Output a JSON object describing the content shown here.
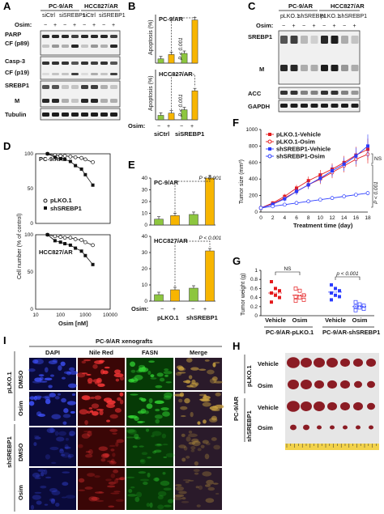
{
  "panels": {
    "A": {
      "label": "A",
      "cell_lines": [
        "PC-9/AR",
        "HCC827/AR"
      ],
      "groups": [
        "siCtrl",
        "siSREBP1",
        "siCtrl",
        "siSREBP1"
      ],
      "osim_label": "Osim:",
      "osim_signs": [
        "−",
        "+",
        "−",
        "+",
        "−",
        "+",
        "−",
        "+"
      ],
      "rows": [
        "PARP",
        "CF (p89)",
        "Casp-3",
        "CF (p19)",
        "SREBP1",
        "M",
        "Tubulin"
      ]
    },
    "B": {
      "label": "B",
      "osim_label": "Osim:",
      "osim_signs": [
        "−",
        "+",
        "−",
        "+"
      ],
      "groups": [
        "siCtrl",
        "siSREBP1"
      ]
    },
    "C": {
      "label": "C",
      "cell_lines": [
        "PC-9/AR",
        "HCC827/AR"
      ],
      "groups": [
        "pLKO.1",
        "shSREBP1",
        "pLKO.1",
        "shSREBP1"
      ],
      "osim_label": "Osim:",
      "osim_signs": [
        "−",
        "+",
        "−",
        "+",
        "−",
        "+",
        "−",
        "+"
      ],
      "rows": [
        "SREBP1",
        "M",
        "ACC",
        "GAPDH"
      ]
    },
    "D": {
      "label": "D"
    },
    "E": {
      "label": "E",
      "osim_label": "Osim:",
      "osim_signs": [
        "−",
        "+",
        "−",
        "+"
      ],
      "groups": [
        "pLKO.1",
        "shSREBP1"
      ]
    },
    "F": {
      "label": "F"
    },
    "G": {
      "label": "G",
      "groups": [
        "Vehicle",
        "Osim",
        "Vehicle",
        "Osim"
      ],
      "group_titles": [
        "PC-9/AR-pLKO.1",
        "PC-9/AR-shSREBP1"
      ]
    },
    "H": {
      "label": "H",
      "side_label": "PC-9/AR",
      "groups": [
        "pLKO.1",
        "shSREBP1"
      ],
      "rows": [
        "Vehicle",
        "Osim",
        "Vehicle",
        "Osim"
      ]
    },
    "I": {
      "label": "I",
      "title": "PC-9/AR xenografts",
      "columns": [
        "DAPI",
        "Nile Red",
        "FASN",
        "Merge"
      ],
      "column_colors": [
        "#2b3cff",
        "#ff2a2a",
        "#1db31d",
        "#111111"
      ],
      "groups": [
        "pLKO.1",
        "shSREBP1"
      ],
      "rows": [
        "DMSO",
        "Osim",
        "DMSO",
        "Osim"
      ]
    }
  },
  "chart_data": [
    {
      "id": "B-top",
      "type": "bar",
      "subtitle": "PC-9/AR",
      "categories": [
        "siCtrl −",
        "siCtrl +",
        "siSREBP1 −",
        "siSREBP1 +"
      ],
      "values": [
        4,
        8,
        9,
        40
      ],
      "ylabel": "Apoptosis (%)",
      "colors": [
        "#8dc63f",
        "#f7b500",
        "#8dc63f",
        "#f7b500"
      ],
      "annotation": "P < 0.001"
    },
    {
      "id": "B-bottom",
      "type": "bar",
      "subtitle": "HCC827/AR",
      "categories": [
        "siCtrl −",
        "siCtrl +",
        "siSREBP1 −",
        "siSREBP1 +"
      ],
      "values": [
        4,
        6,
        9,
        26
      ],
      "ylabel": "Apoptosis (%)",
      "colors": [
        "#8dc63f",
        "#f7b500",
        "#8dc63f",
        "#f7b500"
      ],
      "annotation": "P < 0.001"
    },
    {
      "id": "D-top",
      "type": "line",
      "subtitle": "PC-9/AR",
      "x": [
        30,
        60,
        100,
        150,
        250,
        400,
        700,
        1000,
        2000
      ],
      "xscale": "log",
      "xlim": [
        10,
        10000
      ],
      "ylim": [
        0,
        100
      ],
      "series": [
        {
          "name": "pLKO.1",
          "values": [
            100,
            98,
            97,
            97,
            96,
            95,
            94,
            92,
            88
          ]
        },
        {
          "name": "shSREBP1",
          "values": [
            100,
            95,
            93,
            92,
            89,
            83,
            78,
            70,
            55
          ]
        }
      ]
    },
    {
      "id": "D-bottom",
      "type": "line",
      "subtitle": "HCC827/AR",
      "x": [
        30,
        60,
        100,
        150,
        250,
        400,
        700,
        1000,
        2000
      ],
      "xscale": "log",
      "xlim": [
        10,
        10000
      ],
      "ylim": [
        0,
        100
      ],
      "xticks": [
        "10",
        "100",
        "1000",
        "10000"
      ],
      "yticks": [
        0,
        50,
        100
      ],
      "series": [
        {
          "name": "pLKO.1",
          "values": [
            100,
            98,
            97,
            96,
            96,
            94,
            93,
            90,
            86
          ]
        },
        {
          "name": "shSREBP1",
          "values": [
            100,
            92,
            90,
            88,
            86,
            82,
            78,
            72,
            60
          ]
        }
      ]
    },
    {
      "id": "E-top",
      "type": "bar",
      "subtitle": "PC-9/AR",
      "categories": [
        "pLKO.1 −",
        "pLKO.1 +",
        "shSREBP1 −",
        "shSREBP1 +"
      ],
      "values": [
        5,
        8,
        9,
        40
      ],
      "ylim": [
        0,
        40
      ],
      "yticks": [
        0,
        10,
        20,
        30,
        40
      ],
      "colors": [
        "#8dc63f",
        "#f7b500",
        "#8dc63f",
        "#f7b500"
      ],
      "annotation": "P < 0.001"
    },
    {
      "id": "E-bottom",
      "type": "bar",
      "subtitle": "HCC827/AR",
      "categories": [
        "pLKO.1 −",
        "pLKO.1 +",
        "shSREBP1 −",
        "shSREBP1 +"
      ],
      "values": [
        4,
        7,
        8,
        31
      ],
      "ylim": [
        0,
        40
      ],
      "yticks": [
        0,
        10,
        20,
        30,
        40
      ],
      "colors": [
        "#8dc63f",
        "#f7b500",
        "#8dc63f",
        "#f7b500"
      ],
      "annotation": "P < 0.001"
    },
    {
      "id": "F",
      "type": "line",
      "x": [
        0,
        2,
        4,
        6,
        8,
        10,
        12,
        14,
        16,
        18
      ],
      "xticks": [
        0,
        2,
        4,
        6,
        8,
        10,
        12,
        14,
        16,
        18
      ],
      "xlim": [
        0,
        18
      ],
      "yticks": [
        0,
        200,
        400,
        600,
        800,
        1000
      ],
      "ylim": [
        0,
        1000
      ],
      "series": [
        {
          "name": "pLKO.1-Vehicle",
          "color": "#e41a1c",
          "marker": "filled-square",
          "values": [
            50,
            110,
            190,
            290,
            380,
            450,
            520,
            600,
            690,
            760
          ],
          "errors": [
            10,
            20,
            30,
            40,
            50,
            60,
            70,
            80,
            100,
            130
          ]
        },
        {
          "name": "pLKO.1-Osim",
          "color": "#e41a1c",
          "marker": "open-circle",
          "values": [
            50,
            100,
            170,
            250,
            330,
            400,
            480,
            560,
            640,
            700
          ],
          "errors": [
            10,
            20,
            30,
            40,
            50,
            60,
            70,
            80,
            90,
            110
          ]
        },
        {
          "name": "shSREBP1-Vehicle",
          "color": "#2b3cff",
          "marker": "filled-square",
          "values": [
            50,
            95,
            160,
            250,
            330,
            410,
            500,
            580,
            680,
            800
          ],
          "errors": [
            10,
            20,
            30,
            40,
            50,
            60,
            70,
            80,
            100,
            140
          ]
        },
        {
          "name": "shSREBP1-Osim",
          "color": "#2b3cff",
          "marker": "open-circle",
          "values": [
            50,
            70,
            90,
            110,
            130,
            150,
            170,
            190,
            210,
            230
          ],
          "errors": [
            5,
            8,
            10,
            12,
            14,
            15,
            16,
            18,
            20,
            25
          ]
        }
      ],
      "annotations": [
        "NS",
        "P < 0.001"
      ]
    },
    {
      "id": "G",
      "type": "scatter",
      "categories": [
        "Vehicle",
        "Osim",
        "Vehicle",
        "Osim"
      ],
      "ylabel": "Tumor weight (g)",
      "yticks": [
        0,
        0.2,
        0.4,
        0.6,
        0.8,
        1.0
      ],
      "ylim": [
        0,
        1.0
      ],
      "colors": [
        "#e41a1c",
        "#e41a1c",
        "#2b3cff",
        "#2b3cff"
      ],
      "markers": [
        "filled-square",
        "open-square",
        "filled-square",
        "open-square"
      ],
      "points": [
        [
          0.75,
          0.6,
          0.55,
          0.5,
          0.45,
          0.4,
          0.3
        ],
        [
          0.6,
          0.55,
          0.45,
          0.42,
          0.4,
          0.35,
          0.33
        ],
        [
          0.68,
          0.6,
          0.55,
          0.5,
          0.45,
          0.42,
          0.35
        ],
        [
          0.3,
          0.25,
          0.22,
          0.2,
          0.18,
          0.15,
          0.12
        ]
      ],
      "means": [
        0.5,
        0.45,
        0.52,
        0.2
      ],
      "annotations": [
        "NS",
        "p < 0.001"
      ]
    }
  ]
}
